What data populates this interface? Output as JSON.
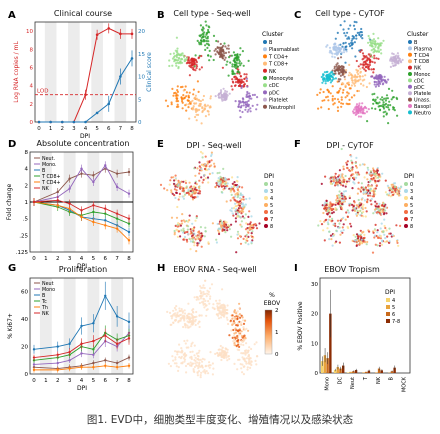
{
  "caption": "图1. EVD中，细胞类型丰度变化、增殖情况以及感染状态",
  "panels": {
    "A": {
      "letter": "A",
      "title": "Clinical course",
      "ylabel_left": "Log RNA copies / mL",
      "ylabel_right": "Clinical score",
      "xlabel": "DPI",
      "lod": "LOD",
      "xticks": [
        "0",
        "1",
        "2",
        "3",
        "4",
        "5",
        "6",
        "7",
        "8"
      ],
      "yticks_left": [
        "0",
        "2",
        "4",
        "6",
        "8",
        "10"
      ],
      "yticks_right": [
        "0",
        "5",
        "10",
        "15",
        "20"
      ]
    },
    "B": {
      "letter": "B",
      "title": "Cell type - Seq-well",
      "legend_title": "Cluster",
      "legend": [
        "B",
        "Plasmablast",
        "T CD4+",
        "T CD8+",
        "NK",
        "Monocyte",
        "cDC",
        "pDC",
        "Platelet",
        "Neutrophil"
      ]
    },
    "C": {
      "letter": "C",
      "title": "Cell type - CyTOF",
      "legend_title": "Cluster",
      "legend": [
        "B",
        "Plasma",
        "T CD4",
        "T CD8",
        "NK",
        "Monoc",
        "cDC",
        "pDC",
        "Platele",
        "Unass.",
        "Basopl",
        "Neutro"
      ]
    },
    "D": {
      "letter": "D",
      "title": "Absolute concentration",
      "ylabel": "Fold change",
      "xlabel": "DPI",
      "legend": [
        "Neut.",
        "Mono.",
        "B",
        "T CD8+",
        "T CD4+",
        "NK"
      ],
      "yticks": [
        "8",
        "4",
        "2",
        "1",
        ".5",
        ".25",
        ".125"
      ],
      "xticks": [
        "0",
        "1",
        "2",
        "3",
        "4",
        "5",
        "6",
        "7",
        "8"
      ]
    },
    "E": {
      "letter": "E",
      "title": "DPI - Seq-well",
      "legend_title": "DPI",
      "legend": [
        "0",
        "3",
        "4",
        "5",
        "6",
        "7",
        "8"
      ]
    },
    "F": {
      "letter": "F",
      "title": "DPI - CyTOF",
      "legend_title": "DPI",
      "legend": [
        "0",
        "3",
        "4",
        "5",
        "6",
        "7",
        "8"
      ]
    },
    "G": {
      "letter": "G",
      "title": "Proliferation",
      "ylabel": "% Ki67+",
      "xlabel": "DPI",
      "legend": [
        "Neut",
        "Mono",
        "B",
        "Tc",
        "Th",
        "NK"
      ],
      "yticks": [
        "0",
        "20",
        "40",
        "60"
      ],
      "xticks": [
        "0",
        "1",
        "2",
        "3",
        "4",
        "5",
        "6",
        "7",
        "8"
      ]
    },
    "H": {
      "letter": "H",
      "title": "EBOV RNA - Seq-well",
      "cbar_title1": "%",
      "cbar_title2": "EBOV",
      "cbar_ticks": [
        "0",
        "1",
        "2"
      ]
    },
    "I": {
      "letter": "I",
      "title": "EBOV Tropism",
      "ylabel": "% EBOV Positive",
      "legend_title": "DPI",
      "legend": [
        "4",
        "5",
        "6",
        "7-8"
      ],
      "yticks": [
        "0",
        "10",
        "20",
        "30"
      ],
      "xticks": [
        "Mono",
        "DC",
        "Neut",
        "T",
        "NK",
        "B",
        "MOCK"
      ]
    }
  },
  "colors": {
    "cluster": [
      "#1f77b4",
      "#aec7e8",
      "#ff7f0e",
      "#ffbb78",
      "#d62728",
      "#2ca02c",
      "#98df8a",
      "#9467bd",
      "#c5b0d5",
      "#8c564b",
      "#e377c2",
      "#17becf"
    ],
    "dpi": [
      "#a6dba0",
      "#abd9e9",
      "#fee090",
      "#fdae61",
      "#f46d43",
      "#d73027",
      "#a50026"
    ],
    "lines": [
      "#8c564b",
      "#9467bd",
      "#1f77b4",
      "#2ca02c",
      "#ff7f0e",
      "#d62728"
    ],
    "virus": "#d62728",
    "clinical": "#1f77b4",
    "tropism": [
      "#f6d36b",
      "#e8a33d",
      "#c96a1b",
      "#8c2d04"
    ]
  },
  "chart_data": [
    {
      "panel": "A",
      "type": "line",
      "x": [
        0,
        1,
        2,
        3,
        4,
        5,
        6,
        7,
        8
      ],
      "series": [
        {
          "axis": "left",
          "values": [
            0,
            0,
            0,
            0,
            3,
            9.6,
            10.3,
            9.7,
            9.7
          ]
        },
        {
          "axis": "right",
          "values": [
            0,
            0,
            0,
            0,
            0,
            2,
            4,
            10,
            14
          ]
        }
      ],
      "lod_value": 3,
      "ylim_left": [
        0,
        11
      ],
      "ylim_right": [
        0,
        22
      ]
    },
    {
      "panel": "D",
      "type": "line",
      "x": [
        0,
        2,
        3,
        4,
        5,
        6,
        7,
        8
      ],
      "log2": true,
      "series": [
        {
          "name": "Neut.",
          "values": [
            0,
            0.6,
            1.4,
            1.7,
            1.6,
            2.0,
            1.7,
            1.8
          ]
        },
        {
          "name": "Mono.",
          "values": [
            0,
            0.3,
            0.8,
            2.0,
            1.2,
            2.2,
            0.9,
            0.5
          ]
        },
        {
          "name": "B",
          "values": [
            0,
            -0.2,
            -0.5,
            -0.9,
            -1.0,
            -1.1,
            -1.4,
            -1.8
          ]
        },
        {
          "name": "T CD8+",
          "values": [
            0,
            -0.3,
            -0.6,
            -0.8,
            -0.6,
            -0.7,
            -1.0,
            -1.3
          ]
        },
        {
          "name": "T CD4+",
          "values": [
            0,
            -0.2,
            -0.4,
            -0.9,
            -1.2,
            -1.4,
            -1.6,
            -2.3
          ]
        },
        {
          "name": "NK",
          "values": [
            0,
            0.1,
            -0.1,
            -0.5,
            -0.2,
            -0.4,
            -0.7,
            -1.0
          ]
        }
      ],
      "ylim": [
        -3,
        3
      ]
    },
    {
      "panel": "G",
      "type": "line",
      "x": [
        0,
        2,
        3,
        4,
        5,
        6,
        7,
        8
      ],
      "series": [
        {
          "name": "Neut",
          "values": [
            5,
            4,
            5,
            6,
            8,
            10,
            8,
            12
          ]
        },
        {
          "name": "Mono",
          "values": [
            7,
            8,
            10,
            15,
            14,
            24,
            20,
            30
          ]
        },
        {
          "name": "B",
          "values": [
            18,
            20,
            22,
            35,
            37,
            57,
            42,
            38
          ]
        },
        {
          "name": "Tc",
          "values": [
            10,
            12,
            14,
            20,
            18,
            30,
            25,
            28
          ]
        },
        {
          "name": "Th",
          "values": [
            3,
            3,
            4,
            5,
            5,
            6,
            5,
            6
          ]
        },
        {
          "name": "NK",
          "values": [
            12,
            14,
            16,
            22,
            24,
            28,
            22,
            26
          ]
        }
      ],
      "ylim": [
        0,
        70
      ]
    },
    {
      "panel": "I",
      "type": "bar",
      "categories": [
        "Mono",
        "DC",
        "Neut",
        "T",
        "NK",
        "B",
        "MOCK"
      ],
      "series": [
        {
          "name": "4",
          "values": [
            4,
            1,
            0.2,
            0,
            0,
            0,
            0
          ]
        },
        {
          "name": "5",
          "values": [
            6,
            2,
            0.4,
            0.2,
            0.2,
            0.1,
            0
          ]
        },
        {
          "name": "6",
          "values": [
            5,
            1.5,
            0.6,
            0.4,
            1.5,
            0.6,
            0
          ]
        },
        {
          "name": "7-8",
          "values": [
            20,
            2.5,
            1,
            0.8,
            0.9,
            1.8,
            0
          ]
        }
      ],
      "ylim": [
        0,
        32
      ]
    }
  ]
}
